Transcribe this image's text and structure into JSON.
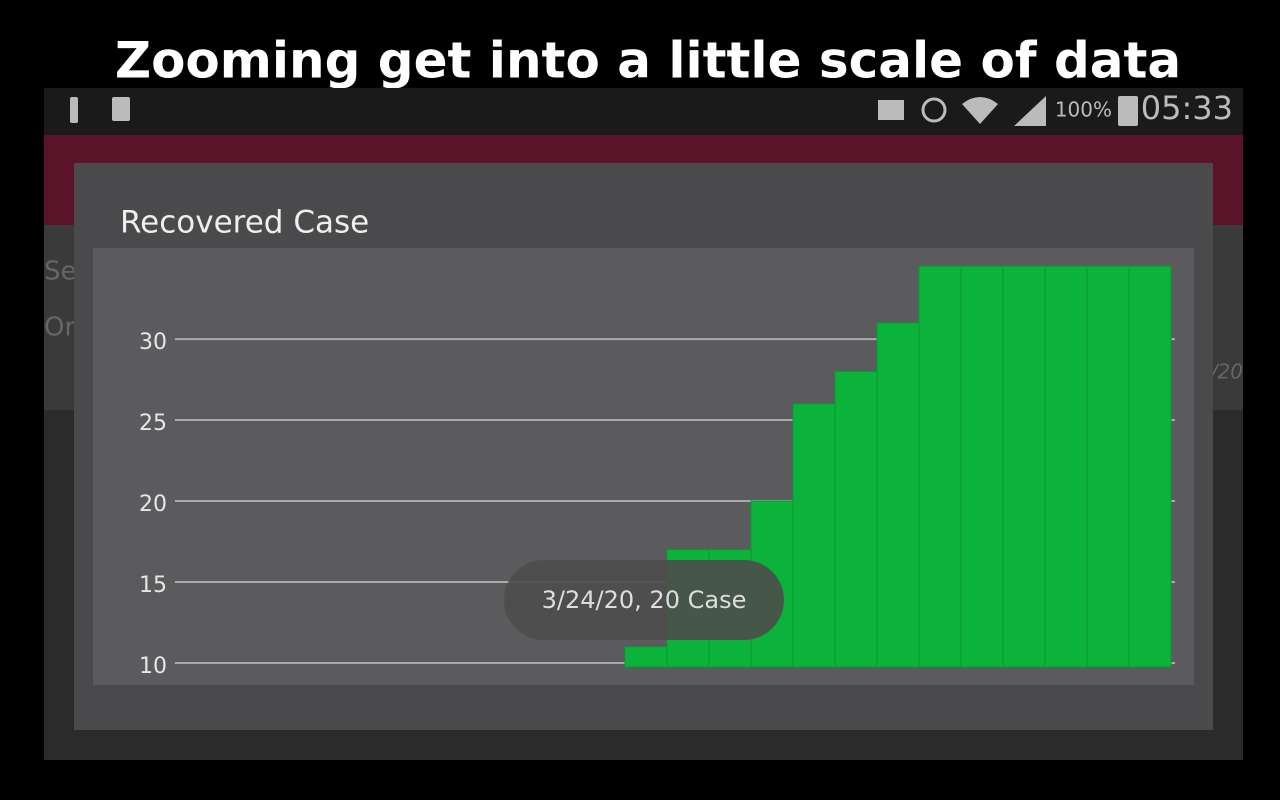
{
  "caption": "Zooming get into a little scale of data",
  "status_bar": {
    "battery": "100%",
    "time": "05:33"
  },
  "background": {
    "fragments": [
      "Se",
      "On",
      "/20"
    ]
  },
  "dialog": {
    "title": "Recovered Case"
  },
  "chart_data": {
    "type": "bar",
    "color": "#0bb33a",
    "grid": true,
    "values": [
      11,
      17,
      17,
      20,
      26,
      28,
      31,
      34.5,
      34.5,
      34.5,
      34.5,
      34.5,
      34.5
    ],
    "ylim": [
      10,
      35.5
    ],
    "yticks": [
      10,
      15,
      20,
      25,
      30
    ]
  },
  "tooltip": {
    "text": "3/24/20, 20 Case"
  }
}
